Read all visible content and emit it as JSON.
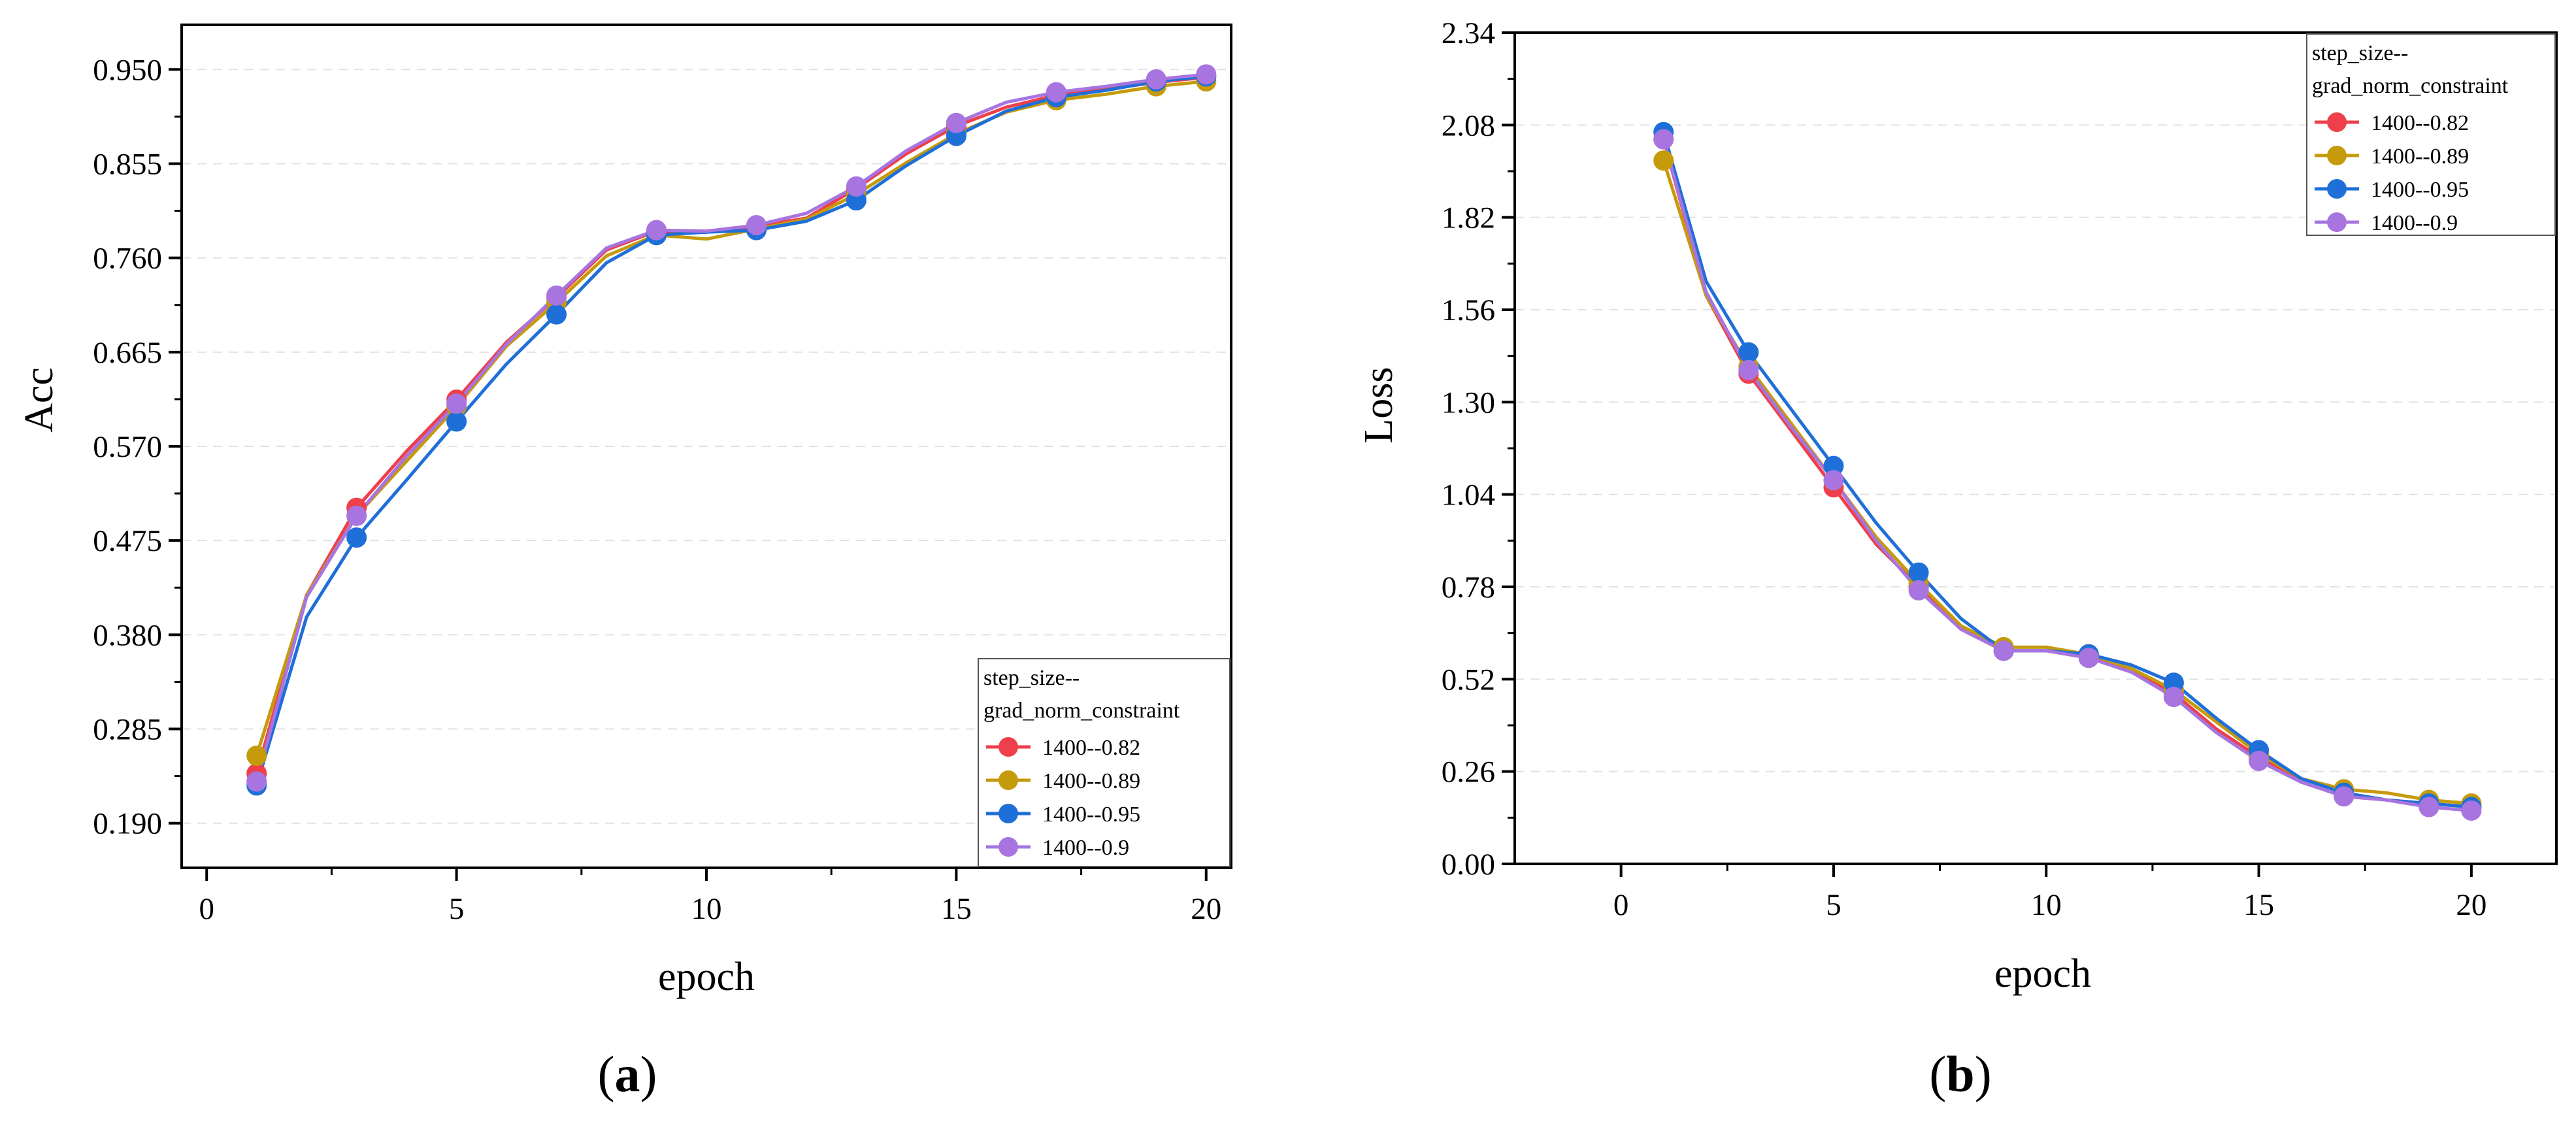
{
  "colors": {
    "s082": "#ee3f4a",
    "s089": "#c59a0b",
    "s095": "#1f6fd8",
    "s09": "#a774e0"
  },
  "chart_data": [
    {
      "type": "line",
      "panel": "a",
      "caption_open": "(",
      "caption_letter": "a",
      "caption_close": ")",
      "xlabel": "epoch",
      "ylabel": "Acc",
      "xlim": [
        -0.5,
        20.5
      ],
      "ylim": [
        0.145,
        0.995
      ],
      "xticks": [
        "0",
        "5",
        "10",
        "15",
        "20"
      ],
      "yticks": [
        "0.190",
        "0.285",
        "0.380",
        "0.475",
        "0.570",
        "0.665",
        "0.760",
        "0.855",
        "0.950"
      ],
      "legend_position": "bottom-right",
      "legend_title_1": "step_size--",
      "legend_title_2": "grad_norm_constraint",
      "x": [
        1,
        2,
        3,
        4,
        5,
        6,
        7,
        8,
        9,
        10,
        11,
        12,
        13,
        14,
        15,
        16,
        17,
        18,
        19,
        20
      ],
      "marker_x": [
        1,
        3,
        5,
        7,
        9,
        11,
        13,
        15,
        17,
        19,
        20
      ],
      "series": [
        {
          "name": "1400--0.82",
          "color_key": "s082",
          "values": [
            0.24,
            0.42,
            0.508,
            0.565,
            0.617,
            0.675,
            0.72,
            0.768,
            0.787,
            0.786,
            0.792,
            0.8,
            0.83,
            0.865,
            0.893,
            0.912,
            0.924,
            0.93,
            0.937,
            0.942
          ]
        },
        {
          "name": "1400--0.89",
          "color_key": "s089",
          "values": [
            0.258,
            0.42,
            0.5,
            0.555,
            0.61,
            0.671,
            0.715,
            0.762,
            0.783,
            0.779,
            0.789,
            0.799,
            0.824,
            0.856,
            0.885,
            0.907,
            0.919,
            0.925,
            0.933,
            0.938
          ]
        },
        {
          "name": "1400--0.95",
          "color_key": "s095",
          "values": [
            0.228,
            0.398,
            0.478,
            0.536,
            0.595,
            0.653,
            0.703,
            0.755,
            0.783,
            0.786,
            0.788,
            0.797,
            0.818,
            0.853,
            0.883,
            0.908,
            0.922,
            0.929,
            0.938,
            0.943
          ]
        },
        {
          "name": "1400--0.9",
          "color_key": "s09",
          "values": [
            0.232,
            0.418,
            0.5,
            0.56,
            0.613,
            0.673,
            0.722,
            0.77,
            0.788,
            0.787,
            0.793,
            0.805,
            0.832,
            0.868,
            0.896,
            0.917,
            0.927,
            0.933,
            0.94,
            0.945
          ]
        }
      ]
    },
    {
      "type": "line",
      "panel": "b",
      "caption_open": "(",
      "caption_letter": "b",
      "caption_close": ")",
      "xlabel": "epoch",
      "ylabel": "Loss",
      "xlim": [
        -2.5,
        22
      ],
      "ylim": [
        0.0,
        2.34
      ],
      "xticks": [
        "0",
        "5",
        "10",
        "15",
        "20"
      ],
      "yticks": [
        "0.00",
        "0.26",
        "0.52",
        "0.78",
        "1.04",
        "1.30",
        "1.56",
        "1.82",
        "2.08",
        "2.34"
      ],
      "legend_position": "top-right",
      "legend_title_1": "step_size--",
      "legend_title_2": "grad_norm_constraint",
      "x": [
        1,
        2,
        3,
        4,
        5,
        6,
        7,
        8,
        9,
        10,
        11,
        12,
        13,
        14,
        15,
        16,
        17,
        18,
        19,
        20
      ],
      "marker_x": [
        1,
        3,
        5,
        7,
        9,
        11,
        13,
        15,
        17,
        19,
        20
      ],
      "series": [
        {
          "name": "1400--0.82",
          "color_key": "s082",
          "values": [
            2.04,
            1.6,
            1.38,
            1.22,
            1.06,
            0.9,
            0.78,
            0.66,
            0.6,
            0.6,
            0.58,
            0.55,
            0.48,
            0.38,
            0.3,
            0.24,
            0.2,
            0.18,
            0.17,
            0.16
          ]
        },
        {
          "name": "1400--0.89",
          "color_key": "s089",
          "values": [
            1.98,
            1.6,
            1.4,
            1.24,
            1.08,
            0.92,
            0.79,
            0.67,
            0.61,
            0.61,
            0.59,
            0.55,
            0.49,
            0.4,
            0.31,
            0.24,
            0.21,
            0.2,
            0.18,
            0.17
          ]
        },
        {
          "name": "1400--0.95",
          "color_key": "s095",
          "values": [
            2.06,
            1.64,
            1.44,
            1.28,
            1.12,
            0.96,
            0.82,
            0.69,
            0.6,
            0.6,
            0.59,
            0.56,
            0.51,
            0.41,
            0.32,
            0.24,
            0.2,
            0.18,
            0.17,
            0.16
          ]
        },
        {
          "name": "1400--0.9",
          "color_key": "s09",
          "values": [
            2.04,
            1.61,
            1.39,
            1.23,
            1.08,
            0.91,
            0.77,
            0.66,
            0.6,
            0.6,
            0.58,
            0.54,
            0.47,
            0.37,
            0.29,
            0.23,
            0.19,
            0.18,
            0.16,
            0.15
          ]
        }
      ]
    }
  ]
}
